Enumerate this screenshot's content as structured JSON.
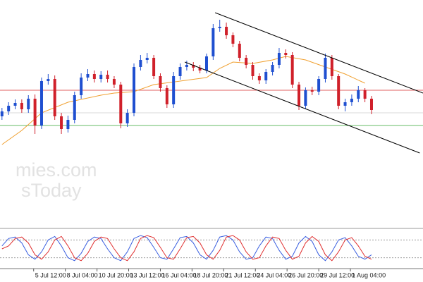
{
  "watermark": [
    "mies.com",
    "sToday"
  ],
  "chart_data": [
    {
      "type": "candlestick",
      "ylim": [
        8,
        330
      ],
      "xlim": [
        -0.3,
        63.8
      ],
      "up_color": "#1f4fd0",
      "down_color": "#d0202a",
      "open": [
        165,
        172,
        180,
        184,
        175,
        190,
        152,
        215,
        218,
        165,
        147,
        160,
        195,
        220,
        225,
        218,
        224,
        218,
        210,
        155,
        170,
        235,
        245,
        248,
        222,
        205,
        182,
        222,
        235,
        238,
        234,
        230,
        250,
        290,
        292,
        280,
        268,
        248,
        238,
        222,
        216,
        228,
        238,
        255,
        252,
        210,
        180,
        202,
        200,
        218,
        248,
        222,
        180,
        185,
        190,
        202,
        190
      ],
      "high": [
        177,
        185,
        189,
        189,
        195,
        196,
        220,
        225,
        223,
        170,
        166,
        200,
        226,
        232,
        230,
        229,
        230,
        222,
        214,
        175,
        240,
        252,
        255,
        252,
        226,
        209,
        228,
        240,
        244,
        242,
        238,
        254,
        296,
        302,
        298,
        284,
        272,
        252,
        242,
        226,
        232,
        242,
        262,
        260,
        256,
        214,
        206,
        207,
        222,
        254,
        252,
        225,
        190,
        196,
        208,
        205,
        194
      ],
      "low": [
        160,
        167,
        175,
        170,
        170,
        140,
        147,
        210,
        160,
        140,
        142,
        155,
        190,
        215,
        213,
        213,
        213,
        205,
        148,
        150,
        165,
        230,
        240,
        218,
        200,
        177,
        177,
        217,
        230,
        229,
        226,
        226,
        245,
        285,
        275,
        263,
        243,
        233,
        217,
        211,
        211,
        223,
        233,
        247,
        205,
        174,
        175,
        195,
        195,
        213,
        217,
        175,
        172,
        180,
        185,
        185,
        168
      ],
      "close": [
        172,
        180,
        184,
        175,
        190,
        152,
        215,
        218,
        165,
        147,
        160,
        195,
        220,
        225,
        218,
        224,
        218,
        210,
        155,
        170,
        235,
        245,
        248,
        222,
        205,
        182,
        222,
        235,
        238,
        234,
        230,
        250,
        290,
        292,
        280,
        268,
        248,
        238,
        222,
        216,
        228,
        238,
        255,
        252,
        210,
        180,
        202,
        200,
        218,
        248,
        222,
        180,
        185,
        190,
        202,
        190,
        174
      ],
      "moving_average": {
        "color": "#f0a030",
        "x": [
          0,
          3,
          6,
          10,
          15,
          17,
          20,
          23,
          27,
          31,
          33,
          35,
          38,
          41,
          43,
          46,
          49,
          52,
          55
        ],
        "values": [
          125,
          145,
          170,
          185,
          195,
          198,
          200,
          210,
          215,
          220,
          233,
          242,
          240,
          245,
          250,
          245,
          235,
          225,
          212
        ]
      },
      "levels": [
        {
          "value": 202,
          "color": "#e06060"
        },
        {
          "value": 152,
          "color": "#66bb66"
        },
        {
          "value": 170,
          "color": "#d8d8d8"
        }
      ],
      "channels": [
        {
          "color": "#000000",
          "x": [
            32.3,
            63.8
          ],
          "values": [
            312,
            198
          ]
        },
        {
          "color": "#000000",
          "x": [
            27.7,
            63.3
          ],
          "values": [
            242,
            113
          ]
        }
      ]
    },
    {
      "type": "line",
      "ylim": [
        0,
        100
      ],
      "xlim": [
        -0.3,
        63.8
      ],
      "levels": [
        80,
        20
      ],
      "series": [
        {
          "color": "#3a5fe0",
          "values": [
            60,
            85,
            90,
            70,
            30,
            15,
            40,
            80,
            92,
            60,
            20,
            10,
            35,
            75,
            90,
            85,
            50,
            20,
            10,
            40,
            85,
            95,
            88,
            55,
            20,
            15,
            50,
            88,
            92,
            70,
            30,
            15,
            45,
            90,
            95,
            80,
            40,
            15,
            20,
            60,
            90,
            85,
            45,
            15,
            25,
            70,
            92,
            75,
            30,
            10,
            40,
            80,
            88,
            60,
            25,
            15,
            30
          ]
        },
        {
          "color": "#e03030",
          "values": [
            50,
            60,
            85,
            90,
            70,
            30,
            15,
            40,
            80,
            92,
            60,
            20,
            10,
            35,
            75,
            90,
            85,
            50,
            20,
            10,
            40,
            85,
            95,
            88,
            55,
            20,
            15,
            50,
            88,
            92,
            70,
            30,
            15,
            45,
            90,
            95,
            80,
            40,
            15,
            20,
            60,
            90,
            85,
            45,
            15,
            25,
            70,
            92,
            75,
            30,
            10,
            40,
            80,
            88,
            60,
            25,
            15
          ]
        }
      ],
      "xticks": [
        {
          "value": 4.8,
          "label": "5 Jul 12:00"
        },
        {
          "value": 9.6,
          "label": "8 Jul 04:00"
        },
        {
          "value": 14.4,
          "label": "10 Jul 20:00"
        },
        {
          "value": 19.2,
          "label": "13 Jul 12:00"
        },
        {
          "value": 24,
          "label": "16 Jul 04:00"
        },
        {
          "value": 28.8,
          "label": "18 Jul 20:00"
        },
        {
          "value": 33.6,
          "label": "21 Jul 12:00"
        },
        {
          "value": 38.4,
          "label": "24 Jul 04:00"
        },
        {
          "value": 43.2,
          "label": "26 Jul 20:00"
        },
        {
          "value": 48,
          "label": "29 Jul 12:00"
        },
        {
          "value": 52.8,
          "label": "1 Aug 04:00"
        }
      ]
    }
  ]
}
